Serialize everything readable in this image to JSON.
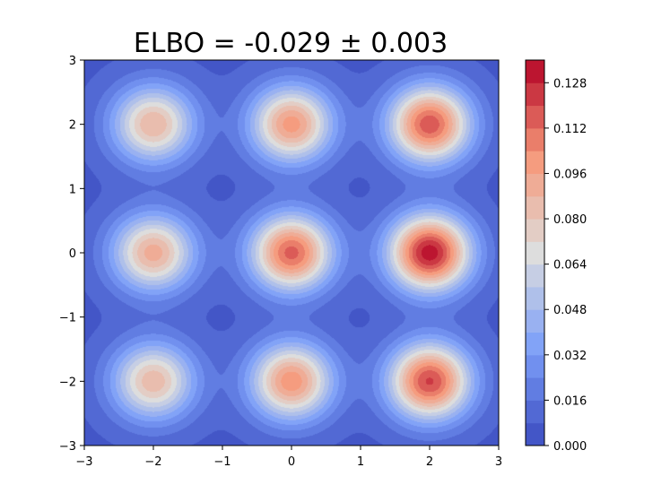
{
  "chart_data": {
    "type": "heatmap",
    "subtype": "filled-contour",
    "title": "ELBO = -0.029 ± 0.003",
    "xlabel": "",
    "ylabel": "",
    "xlim": [
      -3,
      3
    ],
    "ylim": [
      -3,
      3
    ],
    "x_ticks": [
      "−3",
      "−2",
      "−1",
      "0",
      "1",
      "2",
      "3"
    ],
    "y_ticks": [
      "−3",
      "−2",
      "−1",
      "0",
      "1",
      "2",
      "3"
    ],
    "colormap": "coolwarm",
    "grid": false,
    "colorbar": {
      "range": [
        0.0,
        0.136
      ],
      "levels": 17,
      "ticks": [
        "0.000",
        "0.016",
        "0.032",
        "0.048",
        "0.064",
        "0.080",
        "0.096",
        "0.112",
        "0.128"
      ]
    },
    "peaks": [
      {
        "x": -2,
        "y": 2,
        "value": 0.088
      },
      {
        "x": 0,
        "y": 2,
        "value": 0.1
      },
      {
        "x": 2,
        "y": 2,
        "value": 0.118
      },
      {
        "x": -2,
        "y": 0,
        "value": 0.092
      },
      {
        "x": 0,
        "y": 0,
        "value": 0.115
      },
      {
        "x": 2,
        "y": 0,
        "value": 0.133
      },
      {
        "x": -2,
        "y": -2,
        "value": 0.086
      },
      {
        "x": 0,
        "y": -2,
        "value": 0.102
      },
      {
        "x": 2,
        "y": -2,
        "value": 0.121
      }
    ],
    "background_value": 0.006
  }
}
